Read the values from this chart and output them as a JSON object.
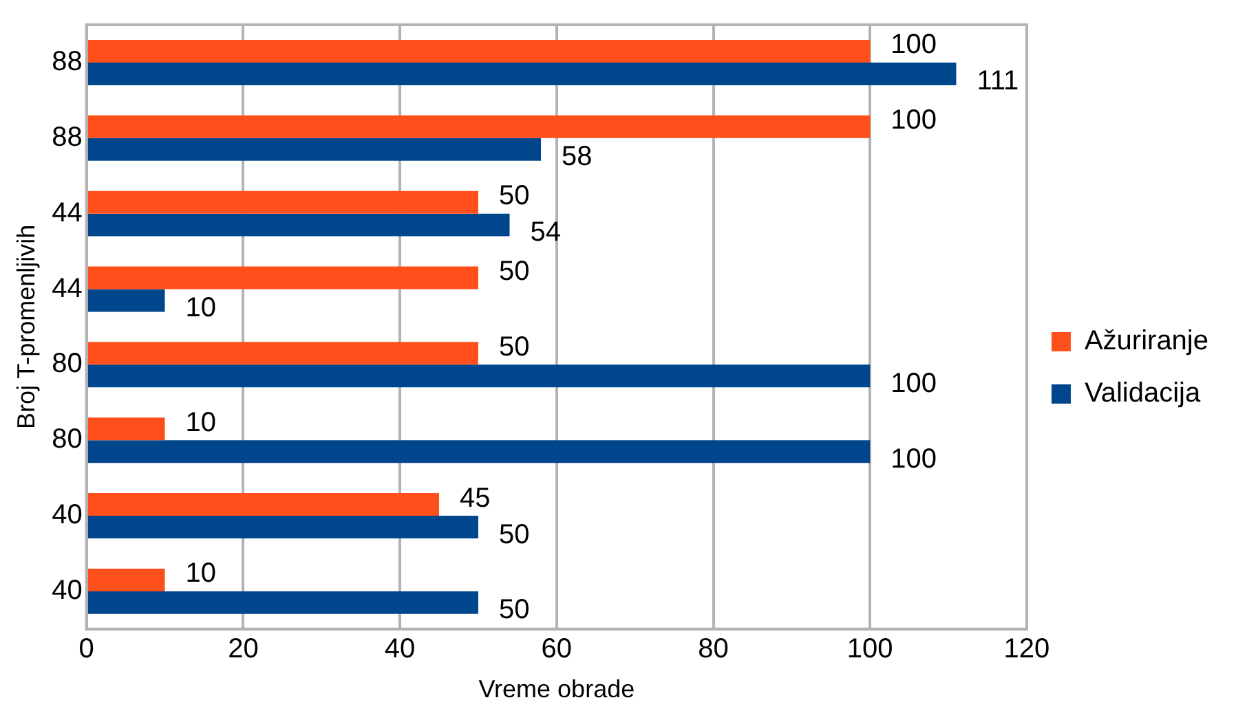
{
  "chart_data": {
    "type": "bar",
    "orientation": "horizontal",
    "xlabel": "Vreme obrade",
    "ylabel": "Broj T-promenljivih",
    "categories": [
      "88",
      "88",
      "44",
      "44",
      "80",
      "80",
      "40",
      "40"
    ],
    "series": [
      {
        "name": "Ažuriranje",
        "color": "#ff4f1a",
        "values": [
          100,
          100,
          50,
          50,
          50,
          10,
          45,
          10
        ]
      },
      {
        "name": "Validacija",
        "color": "#00468c",
        "values": [
          111,
          58,
          54,
          10,
          100,
          100,
          50,
          50
        ]
      }
    ],
    "xlim": [
      0,
      120
    ],
    "xticks": [
      0,
      20,
      40,
      60,
      80,
      100,
      120
    ],
    "grid": "x",
    "legend": "right",
    "data_labels": true
  }
}
